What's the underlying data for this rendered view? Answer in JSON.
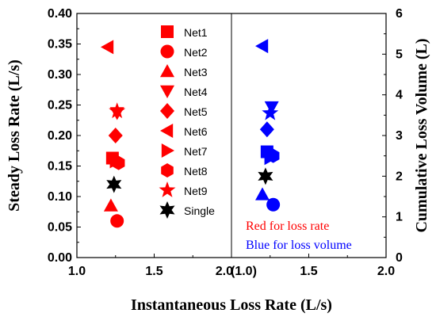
{
  "chart_data": {
    "type": "scatter",
    "xlabel": "Instantaneous Loss Rate (L/s)",
    "ylabel_left": "Steady Loss Rate (L/s)",
    "ylabel_right": "Cumulative Loss Volume (L)",
    "left_panel": {
      "xlim": [
        1.0,
        2.0
      ],
      "x_ticks": [
        "1.0",
        "1.5",
        "2.0"
      ]
    },
    "right_panel": {
      "xlim": [
        1.0,
        2.0
      ],
      "x_ticks": [
        "(1.0)",
        "1.5",
        "2.0"
      ]
    },
    "ylim_left": [
      0.0,
      0.4
    ],
    "y_ticks_left": [
      "0.00",
      "0.05",
      "0.10",
      "0.15",
      "0.20",
      "0.25",
      "0.30",
      "0.35",
      "0.40"
    ],
    "ylim_right": [
      0,
      6
    ],
    "y_ticks_right": [
      "0",
      "1",
      "2",
      "3",
      "4",
      "5",
      "6"
    ],
    "series": [
      {
        "name": "Net1",
        "marker": "square",
        "loss_rate": {
          "x": 1.23,
          "y": 0.163
        },
        "loss_volume": {
          "x": 1.23,
          "y": 2.6
        }
      },
      {
        "name": "Net2",
        "marker": "circle",
        "loss_rate": {
          "x": 1.26,
          "y": 0.06
        },
        "loss_volume": {
          "x": 1.27,
          "y": 1.3
        }
      },
      {
        "name": "Net3",
        "marker": "triangle-up",
        "loss_rate": {
          "x": 1.22,
          "y": 0.085
        },
        "loss_volume": {
          "x": 1.2,
          "y": 1.55
        }
      },
      {
        "name": "Net4",
        "marker": "triangle-down",
        "loss_rate": {
          "x": 1.26,
          "y": 0.237
        },
        "loss_volume": {
          "x": 1.26,
          "y": 3.7
        }
      },
      {
        "name": "Net5",
        "marker": "diamond",
        "loss_rate": {
          "x": 1.25,
          "y": 0.2
        },
        "loss_volume": {
          "x": 1.23,
          "y": 3.15
        }
      },
      {
        "name": "Net6",
        "marker": "triangle-left",
        "loss_rate": {
          "x": 1.2,
          "y": 0.345
        },
        "loss_volume": {
          "x": 1.2,
          "y": 5.2
        }
      },
      {
        "name": "Net7",
        "marker": "triangle-right",
        "loss_rate": {
          "x": 1.25,
          "y": 0.158
        },
        "loss_volume": {
          "x": 1.25,
          "y": 2.45
        }
      },
      {
        "name": "Net8",
        "marker": "hexagon",
        "loss_rate": {
          "x": 1.27,
          "y": 0.155
        },
        "loss_volume": {
          "x": 1.27,
          "y": 2.5
        }
      },
      {
        "name": "Net9",
        "marker": "star5",
        "loss_rate": {
          "x": 1.26,
          "y": 0.24
        },
        "loss_volume": {
          "x": 1.25,
          "y": 3.55
        }
      },
      {
        "name": "Single",
        "marker": "star6",
        "loss_rate": {
          "x": 1.24,
          "y": 0.12
        },
        "loss_volume": {
          "x": 1.22,
          "y": 2.0
        }
      }
    ],
    "annotations": [
      "Red for loss rate",
      "Blue for loss volume"
    ],
    "colors": {
      "loss_rate": "#ff0000",
      "loss_volume": "#0000ff",
      "single": "#000000"
    }
  }
}
